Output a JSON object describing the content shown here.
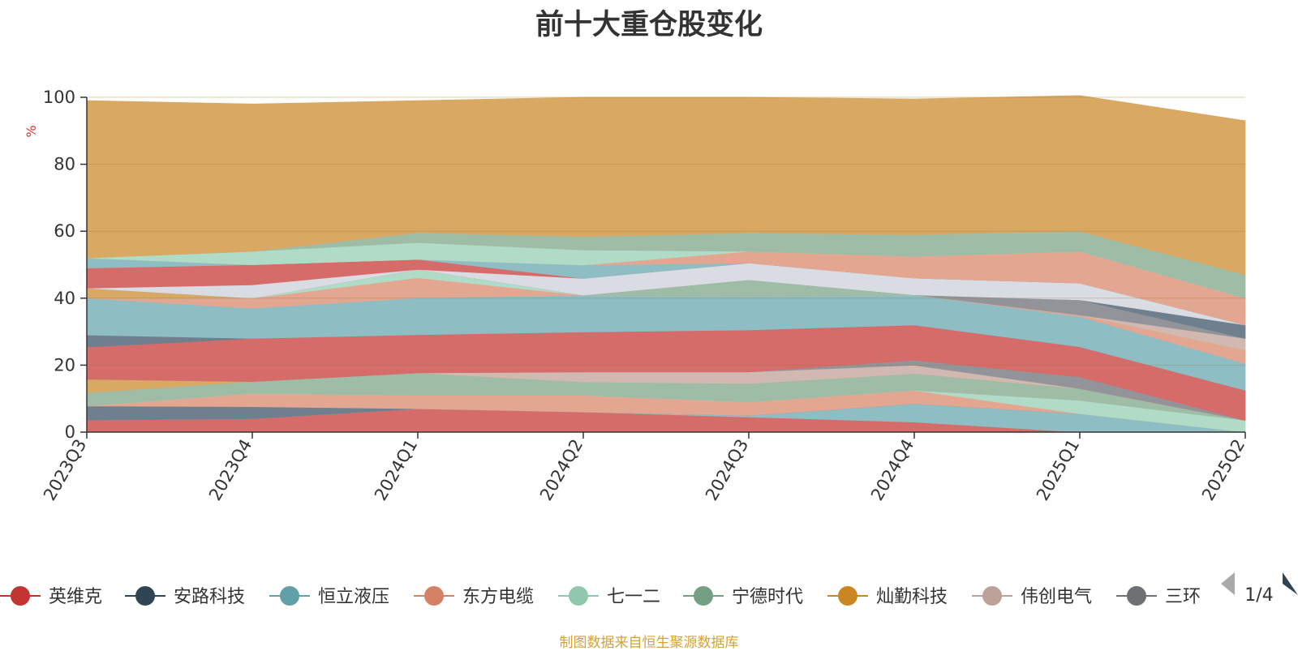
{
  "chart_data": {
    "type": "area",
    "stacked": true,
    "title": "前十大重仓股变化",
    "ylabel": "%",
    "ylim": [
      0,
      100
    ],
    "yticks": [
      0,
      20,
      40,
      60,
      80,
      100
    ],
    "x": [
      "2023Q3",
      "2023Q4",
      "2024Q1",
      "2024Q2",
      "2024Q3",
      "2024Q4",
      "2025Q1",
      "2025Q2"
    ],
    "series": [
      {
        "name": "英维克",
        "color": "#d66c6a",
        "values": [
          3.6,
          4.0,
          7.0,
          6.0,
          4.5,
          3.0,
          0,
          0
        ]
      },
      {
        "name": "恒立液压",
        "color": "#8fbdc4",
        "values": [
          0,
          0,
          0,
          0,
          0.5,
          5.5,
          5.5,
          0
        ]
      },
      {
        "name": "安路科技",
        "color": "#6f7f8e",
        "values": [
          4.2,
          3.6,
          0,
          0,
          0,
          0,
          0,
          0
        ]
      },
      {
        "name": "东方电缆",
        "color": "#e3a690",
        "values": [
          0,
          4.0,
          4.0,
          5.0,
          4.0,
          4.0,
          0,
          0
        ]
      },
      {
        "name": "七一二",
        "color": "#b0dcc7",
        "values": [
          0,
          0,
          0,
          0,
          0,
          0,
          4.0,
          3.5
        ]
      },
      {
        "name": "宁德时代",
        "color": "#9fbca6",
        "values": [
          4.0,
          3.5,
          6.7,
          4.0,
          5.5,
          5.0,
          3.5,
          0
        ]
      },
      {
        "name": "灿勤科技",
        "color": "#d9a963",
        "values": [
          4.0,
          0,
          0,
          0,
          0,
          0,
          0,
          0
        ]
      },
      {
        "name": "伟创电气",
        "color": "#d1b8b1",
        "values": [
          0,
          0,
          0,
          3.0,
          3.5,
          2.5,
          0,
          0
        ]
      },
      {
        "name": "三环集团",
        "color": "#93949a",
        "values": [
          0,
          0,
          0,
          0,
          0,
          1.5,
          3.5,
          0
        ]
      },
      {
        "name": "英维克",
        "color": "#d66c6a",
        "values": [
          9.6,
          12.9,
          11.4,
          11.9,
          12.5,
          10.5,
          9.0,
          9.0
        ]
      },
      {
        "name": "安路科技",
        "color": "#6f7f8e",
        "values": [
          3.6,
          0,
          0,
          0,
          0,
          0,
          0,
          0
        ]
      },
      {
        "name": "恒立液压",
        "color": "#8fbdc4",
        "values": [
          11.0,
          9.0,
          11.0,
          11.0,
          10.0,
          9.0,
          9.0,
          8.0
        ]
      },
      {
        "name": "东方电缆",
        "color": "#e3a690",
        "values": [
          0,
          3.0,
          6.0,
          0,
          0,
          0,
          0.5,
          4.0
        ]
      },
      {
        "name": "七一二",
        "color": "#b0dcc7",
        "values": [
          0,
          0,
          2.5,
          0,
          0,
          0,
          0,
          0
        ]
      },
      {
        "name": "宁德时代",
        "color": "#9fbca6",
        "values": [
          0,
          0,
          0,
          0,
          5.0,
          0,
          0,
          0
        ]
      },
      {
        "name": "灿勤科技",
        "color": "#d9a963",
        "values": [
          3.0,
          0,
          0,
          0,
          0,
          0,
          0,
          0
        ]
      },
      {
        "name": "伟创电气",
        "color": "#d1b8b1",
        "values": [
          0,
          0,
          0,
          0,
          0,
          0,
          0,
          3.5
        ]
      },
      {
        "name": "三环集团",
        "color": "#93949a",
        "values": [
          0,
          0,
          0,
          0,
          0,
          0,
          4.5,
          0
        ]
      },
      {
        "name": "安路科技",
        "color": "#6f7f8e",
        "values": [
          0,
          0,
          0,
          0,
          0,
          0,
          0,
          4.0
        ]
      },
      {
        "name": "",
        "color": "#d9dde3",
        "values": [
          0,
          4.0,
          0,
          5.0,
          5.0,
          5.0,
          5.0,
          0
        ]
      },
      {
        "name": "英维克",
        "color": "#d66c6a",
        "values": [
          6.0,
          6.0,
          3.0,
          0,
          0,
          0,
          0,
          0
        ]
      },
      {
        "name": "恒立液压",
        "color": "#8fbdc4",
        "values": [
          3.0,
          0,
          0,
          4.0,
          0,
          0,
          0,
          0
        ]
      },
      {
        "name": "东方电缆",
        "color": "#e3a690",
        "values": [
          0,
          0,
          0,
          0,
          3.5,
          6.5,
          9.5,
          8.0
        ]
      },
      {
        "name": "七一二",
        "color": "#b0dcc7",
        "values": [
          0,
          4.0,
          5.0,
          4.5,
          0,
          0,
          0,
          0
        ]
      },
      {
        "name": "宁德时代",
        "color": "#9fbca6",
        "values": [
          0,
          0,
          3.0,
          4.0,
          5.5,
          6.5,
          6.0,
          7.0
        ]
      },
      {
        "name": "灿勤科技",
        "color": "#d9a963",
        "values": [
          47.0,
          44.0,
          39.4,
          41.6,
          40.5,
          40.5,
          40.5,
          46.0
        ]
      }
    ]
  },
  "legend": {
    "items": [
      {
        "name": "英维克",
        "color": "#c23531"
      },
      {
        "name": "安路科技",
        "color": "#2f4554"
      },
      {
        "name": "恒立液压",
        "color": "#61a0a8"
      },
      {
        "name": "东方电缆",
        "color": "#d48265"
      },
      {
        "name": "七一二",
        "color": "#91c7ae"
      },
      {
        "name": "宁德时代",
        "color": "#749f83"
      },
      {
        "name": "灿勤科技",
        "color": "#ca8622"
      },
      {
        "name": "伟创电气",
        "color": "#bda29a"
      },
      {
        "name": "三环集团",
        "color": "#6e7074"
      }
    ],
    "page": "1/4",
    "prev_icon": "triangle-left-icon",
    "next_icon": "triangle-right-icon"
  },
  "footer": {
    "source": "制图数据来自恒生聚源数据库"
  }
}
